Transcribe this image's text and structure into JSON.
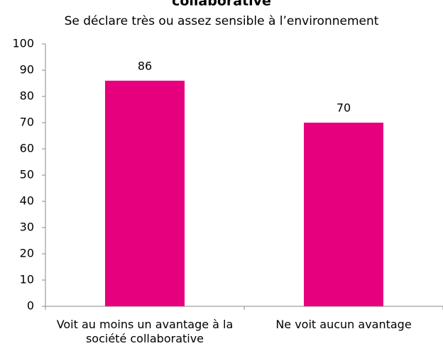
{
  "chart_data": {
    "type": "bar",
    "title": "collaborative",
    "subtitle": "Se déclare très ou assez sensible à l’environnement",
    "categories": [
      "Voit au moins un avantage à la société collaborative",
      "Ne voit aucun avantage"
    ],
    "values": [
      86,
      70
    ],
    "color": "#e6007e",
    "ylim": [
      0,
      100
    ],
    "yticks": [
      0,
      10,
      20,
      30,
      40,
      50,
      60,
      70,
      80,
      90,
      100
    ],
    "grid": false
  }
}
